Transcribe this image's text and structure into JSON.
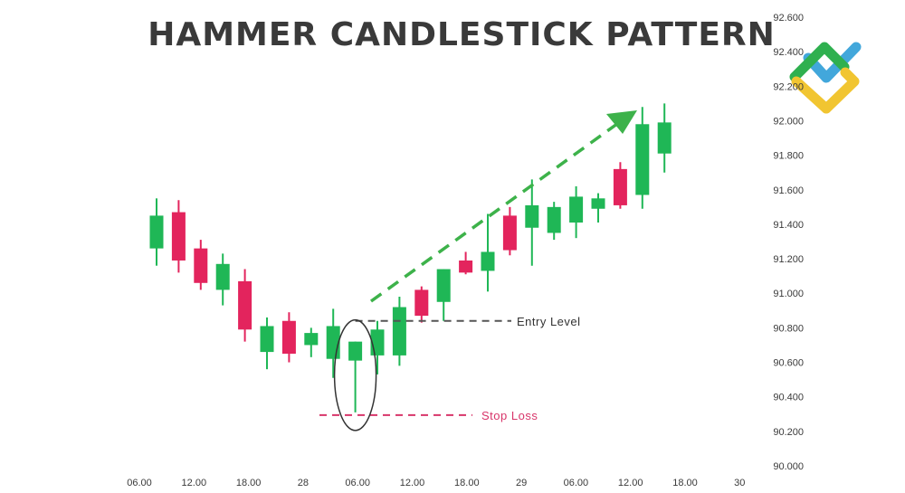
{
  "chart_data": {
    "type": "candlestick",
    "title": "HAMMER CANDLESTICK PATTERN",
    "x_ticks": [
      "06.00",
      "12.00",
      "18.00",
      "28",
      "06.00",
      "12.00",
      "18.00",
      "29",
      "06.00",
      "12.00",
      "18.00",
      "30"
    ],
    "y_ticks": [
      "92.600",
      "92.400",
      "92.200",
      "92.000",
      "91.800",
      "91.600",
      "91.400",
      "91.200",
      "91.000",
      "90.800",
      "90.600",
      "90.400",
      "90.200",
      "90.000"
    ],
    "ylim": [
      90.0,
      92.6
    ],
    "candles": [
      {
        "open": 91.26,
        "close": 91.45,
        "high": 91.55,
        "low": 91.16
      },
      {
        "open": 91.47,
        "close": 91.19,
        "high": 91.54,
        "low": 91.12
      },
      {
        "open": 91.26,
        "close": 91.06,
        "high": 91.31,
        "low": 91.02
      },
      {
        "open": 91.02,
        "close": 91.17,
        "high": 91.23,
        "low": 90.93
      },
      {
        "open": 91.07,
        "close": 90.79,
        "high": 91.14,
        "low": 90.72
      },
      {
        "open": 90.66,
        "close": 90.81,
        "high": 90.86,
        "low": 90.56
      },
      {
        "open": 90.84,
        "close": 90.65,
        "high": 90.89,
        "low": 90.6
      },
      {
        "open": 90.7,
        "close": 90.77,
        "high": 90.8,
        "low": 90.63
      },
      {
        "open": 90.62,
        "close": 90.81,
        "high": 90.91,
        "low": 90.51
      },
      {
        "open": 90.61,
        "close": 90.72,
        "high": 90.72,
        "low": 90.31
      },
      {
        "open": 90.64,
        "close": 90.79,
        "high": 90.84,
        "low": 90.53
      },
      {
        "open": 90.64,
        "close": 90.92,
        "high": 90.98,
        "low": 90.58
      },
      {
        "open": 91.02,
        "close": 90.87,
        "high": 91.04,
        "low": 90.83
      },
      {
        "open": 90.95,
        "close": 91.14,
        "high": 91.14,
        "low": 90.84
      },
      {
        "open": 91.19,
        "close": 91.12,
        "high": 91.24,
        "low": 91.11
      },
      {
        "open": 91.13,
        "close": 91.24,
        "high": 91.46,
        "low": 91.01
      },
      {
        "open": 91.45,
        "close": 91.25,
        "high": 91.5,
        "low": 91.22
      },
      {
        "open": 91.38,
        "close": 91.51,
        "high": 91.66,
        "low": 91.16
      },
      {
        "open": 91.35,
        "close": 91.5,
        "high": 91.53,
        "low": 91.31
      },
      {
        "open": 91.41,
        "close": 91.56,
        "high": 91.62,
        "low": 91.32
      },
      {
        "open": 91.49,
        "close": 91.55,
        "high": 91.58,
        "low": 91.41
      },
      {
        "open": 91.72,
        "close": 91.51,
        "high": 91.76,
        "low": 91.49
      },
      {
        "open": 91.57,
        "close": 91.98,
        "high": 92.08,
        "low": 91.49
      },
      {
        "open": 91.81,
        "close": 91.99,
        "high": 92.1,
        "low": 91.7
      }
    ],
    "entry_level": {
      "label": "Entry Level",
      "value": 90.84
    },
    "stop_loss": {
      "label": "Stop Loss",
      "value": 90.31
    },
    "hammer_index": 9,
    "colors": {
      "up": "#1fb756",
      "down": "#e3245d",
      "entry": "#555555",
      "stop": "#d8356a",
      "arrow": "#3db24a",
      "title": "#3a3a3a"
    }
  }
}
